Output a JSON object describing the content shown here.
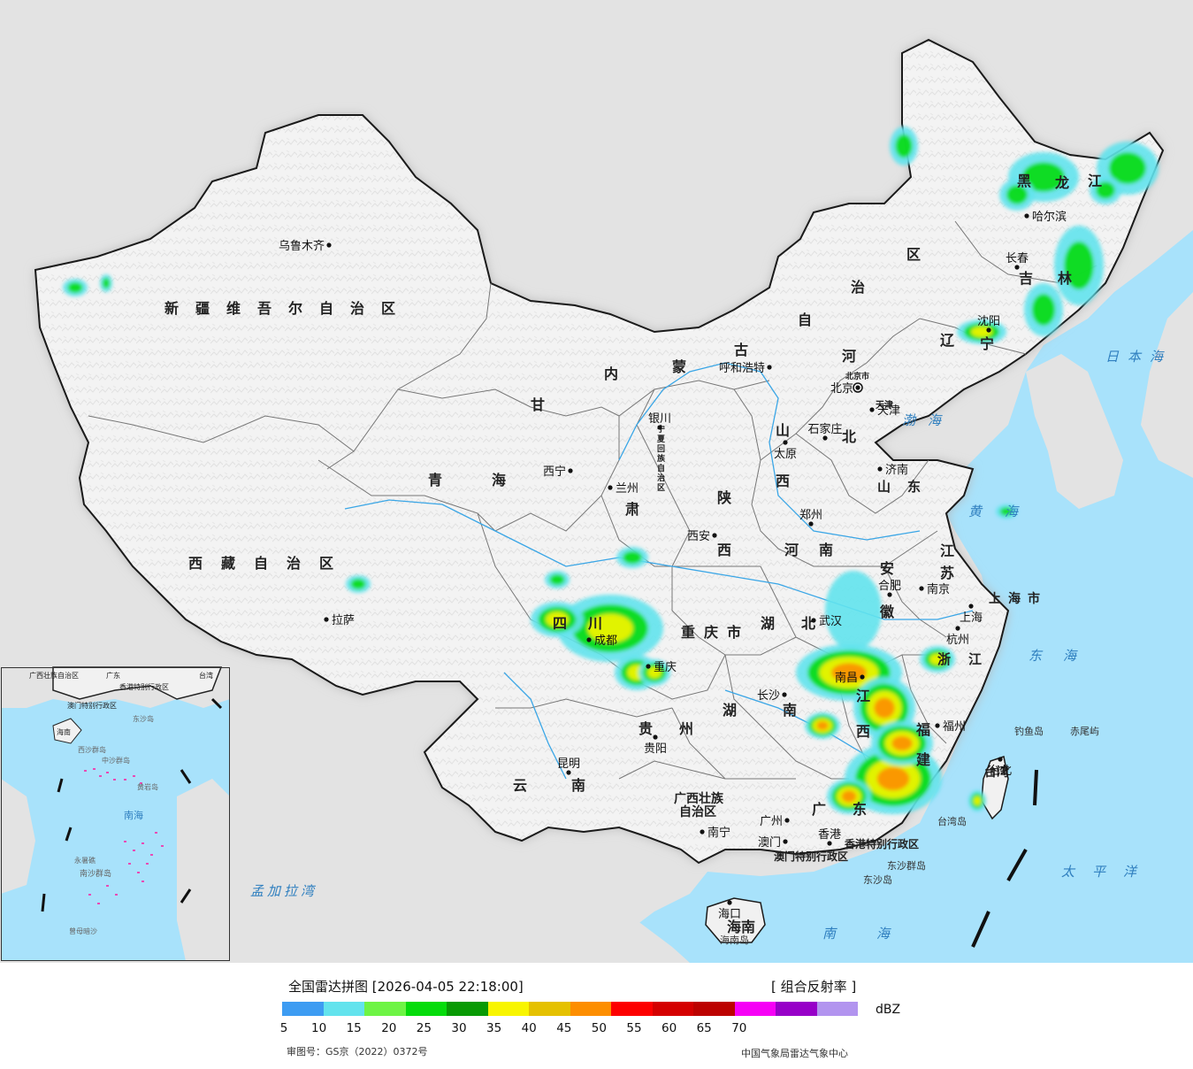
{
  "map": {
    "colors": {
      "sea": "#a8e2fb",
      "outside_land": "#e3e3e3",
      "china_land": "#f1f1f1",
      "border": "#1a1a1a",
      "province_border": "#777777",
      "river": "#3aa6e6",
      "province_label": "#222222"
    },
    "provinces": [
      {
        "id": "xinjiang",
        "label": "新疆维吾尔自治区"
      },
      {
        "id": "xizang",
        "label": "西藏自治区"
      },
      {
        "id": "qinghai-1",
        "label": "青"
      },
      {
        "id": "qinghai-2",
        "label": "海"
      },
      {
        "id": "gansu-1",
        "label": "甘"
      },
      {
        "id": "gansu-2",
        "label": "肃"
      },
      {
        "id": "neimenggu-1",
        "label": "内"
      },
      {
        "id": "neimenggu-2",
        "label": "蒙"
      },
      {
        "id": "neimenggu-3",
        "label": "古"
      },
      {
        "id": "neimenggu-4",
        "label": "自"
      },
      {
        "id": "neimenggu-5",
        "label": "治"
      },
      {
        "id": "neimenggu-6",
        "label": "区"
      },
      {
        "id": "heilongjiang-1",
        "label": "黑"
      },
      {
        "id": "heilongjiang-2",
        "label": "龙"
      },
      {
        "id": "heilongjiang-3",
        "label": "江"
      },
      {
        "id": "jilin-1",
        "label": "吉"
      },
      {
        "id": "jilin-2",
        "label": "林"
      },
      {
        "id": "liaoning-1",
        "label": "辽"
      },
      {
        "id": "liaoning-2",
        "label": "宁"
      },
      {
        "id": "hebei-1",
        "label": "河"
      },
      {
        "id": "hebei-2",
        "label": "北"
      },
      {
        "id": "shanxi-1",
        "label": "山"
      },
      {
        "id": "shanxi-2",
        "label": "西"
      },
      {
        "id": "shandong",
        "label": "山东"
      },
      {
        "id": "ningxia",
        "label": "宁夏回族自治区"
      },
      {
        "id": "shaanxi-1",
        "label": "陕"
      },
      {
        "id": "shaanxi-2",
        "label": "西"
      },
      {
        "id": "henan-1",
        "label": "河"
      },
      {
        "id": "henan-2",
        "label": "南"
      },
      {
        "id": "jiangsu-1",
        "label": "江"
      },
      {
        "id": "jiangsu-2",
        "label": "苏"
      },
      {
        "id": "anhui-1",
        "label": "安"
      },
      {
        "id": "anhui-2",
        "label": "徽"
      },
      {
        "id": "shanghai",
        "label": "上海市"
      },
      {
        "id": "sichuan-1",
        "label": "四"
      },
      {
        "id": "sichuan-2",
        "label": "川"
      },
      {
        "id": "chongqing",
        "label": "重庆市"
      },
      {
        "id": "hubei",
        "label": "湖北"
      },
      {
        "id": "zhejiang",
        "label": "浙江"
      },
      {
        "id": "hunan-1",
        "label": "湖"
      },
      {
        "id": "hunan-2",
        "label": "南"
      },
      {
        "id": "jiangxi-1",
        "label": "江"
      },
      {
        "id": "jiangxi-2",
        "label": "西"
      },
      {
        "id": "fujian-1",
        "label": "福"
      },
      {
        "id": "fujian-2",
        "label": "建"
      },
      {
        "id": "guizhou",
        "label": "贵州"
      },
      {
        "id": "yunnan",
        "label": "云南"
      },
      {
        "id": "guangxi-1",
        "label": "广西壮族"
      },
      {
        "id": "guangxi-2",
        "label": "自治区"
      },
      {
        "id": "guangdong",
        "label": "广东"
      },
      {
        "id": "hainan",
        "label": "海南"
      },
      {
        "id": "taiwan",
        "label": "台湾"
      },
      {
        "id": "hongkong",
        "label": "香港特别行政区"
      },
      {
        "id": "macau",
        "label": "澳门特别行政区"
      },
      {
        "id": "tianjin",
        "label": "天津"
      },
      {
        "id": "beijing-city",
        "label": "北京市"
      }
    ],
    "cities": [
      {
        "id": "urumqi",
        "label": "乌鲁木齐"
      },
      {
        "id": "lhasa",
        "label": "拉萨"
      },
      {
        "id": "xining",
        "label": "西宁"
      },
      {
        "id": "lanzhou",
        "label": "兰州"
      },
      {
        "id": "yinchuan",
        "label": "银川"
      },
      {
        "id": "hohhot",
        "label": "呼和浩特"
      },
      {
        "id": "harbin",
        "label": "哈尔滨"
      },
      {
        "id": "changchun",
        "label": "长春"
      },
      {
        "id": "shenyang",
        "label": "沈阳"
      },
      {
        "id": "beijing",
        "label": "北京"
      },
      {
        "id": "tianjin",
        "label": "天津"
      },
      {
        "id": "shijiazhuang",
        "label": "石家庄"
      },
      {
        "id": "taiyuan",
        "label": "太原"
      },
      {
        "id": "jinan",
        "label": "济南"
      },
      {
        "id": "zhengzhou",
        "label": "郑州"
      },
      {
        "id": "xian",
        "label": "西安"
      },
      {
        "id": "hefei",
        "label": "合肥"
      },
      {
        "id": "nanjing",
        "label": "南京"
      },
      {
        "id": "shanghai",
        "label": "上海"
      },
      {
        "id": "hangzhou",
        "label": "杭州"
      },
      {
        "id": "wuhan",
        "label": "武汉"
      },
      {
        "id": "chengdu",
        "label": "成都"
      },
      {
        "id": "chongqing",
        "label": "重庆"
      },
      {
        "id": "changsha",
        "label": "长沙"
      },
      {
        "id": "nanchang",
        "label": "南昌"
      },
      {
        "id": "fuzhou",
        "label": "福州"
      },
      {
        "id": "taipei",
        "label": "台北"
      },
      {
        "id": "guiyang",
        "label": "贵阳"
      },
      {
        "id": "kunming",
        "label": "昆明"
      },
      {
        "id": "nanning",
        "label": "南宁"
      },
      {
        "id": "guangzhou",
        "label": "广州"
      },
      {
        "id": "hongkong",
        "label": "香港"
      },
      {
        "id": "macau",
        "label": "澳门"
      },
      {
        "id": "haikou",
        "label": "海口"
      }
    ],
    "seas": [
      {
        "id": "japan-sea",
        "label": "日本海"
      },
      {
        "id": "bohai",
        "label": "渤海"
      },
      {
        "id": "yellow-sea",
        "label": "黄海"
      },
      {
        "id": "east-china-sea",
        "label": "东海"
      },
      {
        "id": "pacific",
        "label": "太平洋"
      },
      {
        "id": "south-china-sea",
        "label": "南海"
      },
      {
        "id": "bay-of-bengal",
        "label": "孟加拉湾"
      }
    ],
    "islands": [
      {
        "id": "diaoyu",
        "label": "钓鱼岛"
      },
      {
        "id": "chiwei",
        "label": "赤尾屿"
      },
      {
        "id": "taiwan-island",
        "label": "台湾岛"
      },
      {
        "id": "dongsha-qundao",
        "label": "东沙群岛"
      },
      {
        "id": "dongsha-dao",
        "label": "东沙岛"
      },
      {
        "id": "hainan-island",
        "label": "海南岛"
      }
    ],
    "inset": {
      "labels": [
        {
          "id": "guangxi",
          "label": "广西壮族自治区"
        },
        {
          "id": "guangdong",
          "label": "广东"
        },
        {
          "id": "hongkong",
          "label": "香港特别行政区"
        },
        {
          "id": "macau",
          "label": "澳门特别行政区"
        },
        {
          "id": "taiwan",
          "label": "台湾"
        },
        {
          "id": "hainan",
          "label": "海南"
        },
        {
          "id": "dongsha",
          "label": "东沙岛"
        },
        {
          "id": "xisha",
          "label": "西沙群岛"
        },
        {
          "id": "zhongsha",
          "label": "中沙群岛"
        },
        {
          "id": "huangyan",
          "label": "黄岩岛"
        },
        {
          "id": "nansha",
          "label": "南沙群岛"
        },
        {
          "id": "yongshu",
          "label": "永暑礁"
        },
        {
          "id": "zengmu",
          "label": "曾母暗沙"
        },
        {
          "id": "nanhai",
          "label": "南海"
        }
      ]
    },
    "radar_echoes": [
      {
        "region": "heilongjiang-west",
        "peak_dbz": 20
      },
      {
        "region": "heilongjiang-central",
        "peak_dbz": 25
      },
      {
        "region": "heilongjiang-east",
        "peak_dbz": 25
      },
      {
        "region": "jilin-east",
        "peak_dbz": 25
      },
      {
        "region": "shenyang",
        "peak_dbz": 35
      },
      {
        "region": "sichuan",
        "peak_dbz": 30
      },
      {
        "region": "chongqing",
        "peak_dbz": 30
      },
      {
        "region": "gansu-south",
        "peak_dbz": 20
      },
      {
        "region": "anhui-hubei",
        "peak_dbz": 10
      },
      {
        "region": "jiangxi-hunan",
        "peak_dbz": 45
      },
      {
        "region": "fujian-guangdong",
        "peak_dbz": 45
      },
      {
        "region": "zhejiang",
        "peak_dbz": 30
      },
      {
        "region": "taiwan",
        "peak_dbz": 30
      },
      {
        "region": "yellow-sea",
        "peak_dbz": 20
      },
      {
        "region": "xizang-east",
        "peak_dbz": 20
      },
      {
        "region": "xinjiang-west",
        "peak_dbz": 20
      }
    ]
  },
  "legend": {
    "title": "全国雷达拼图 [2026-04-05 22:18:00]",
    "product": "[ 组合反射率 ]",
    "unit": "dBZ",
    "ticks": [
      "5",
      "10",
      "15",
      "20",
      "25",
      "30",
      "35",
      "40",
      "45",
      "50",
      "55",
      "60",
      "65",
      "70"
    ],
    "swatches": [
      "#3d9cf2",
      "#63e3ed",
      "#6ef445",
      "#05dc0b",
      "#089a04",
      "#f8f500",
      "#e5c100",
      "#fd8e00",
      "#fd0000",
      "#d40000",
      "#bc0200",
      "#f600f6",
      "#9700c8",
      "#b294ef"
    ],
    "approval": "审图号：GS京（2022）0372号",
    "credit": "中国气象局雷达气象中心"
  }
}
